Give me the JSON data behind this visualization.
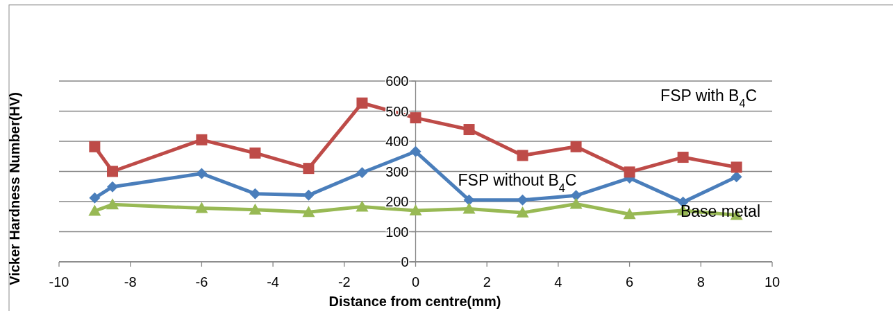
{
  "chart_data": {
    "type": "line",
    "xlabel": "Distance from centre(mm)",
    "ylabel": "Vicker Hardness Number(HV)",
    "x": [
      -9,
      -8.5,
      -6,
      -4.5,
      -3,
      -1.5,
      0,
      1.5,
      3,
      4.5,
      6,
      7.5,
      9
    ],
    "series": [
      {
        "name": "FSP without B$_{4}$C",
        "color": "#4a7ebb",
        "marker": "diamond",
        "values": [
          212,
          249,
          293,
          226,
          221,
          296,
          366,
          205,
          205,
          220,
          278,
          198,
          282
        ]
      },
      {
        "name": "FSP with B$_{4}$C",
        "color": "#be4b48",
        "marker": "square",
        "values": [
          382,
          300,
          405,
          361,
          310,
          527,
          478,
          439,
          353,
          382,
          298,
          347,
          314
        ]
      },
      {
        "name": "Base metal",
        "color": "#98b954",
        "marker": "triangle",
        "values": [
          169,
          190,
          178,
          173,
          165,
          183,
          170,
          176,
          163,
          192,
          158,
          170,
          155
        ]
      }
    ],
    "xlim": [
      -10,
      10
    ],
    "xticks": [
      -10,
      -8,
      -6,
      -4,
      -2,
      0,
      2,
      4,
      6,
      8,
      10
    ],
    "ylim": [
      0,
      600
    ],
    "yticks": [
      0,
      100,
      200,
      300,
      400,
      500,
      600
    ],
    "grid": "y",
    "line_style": "solid"
  }
}
